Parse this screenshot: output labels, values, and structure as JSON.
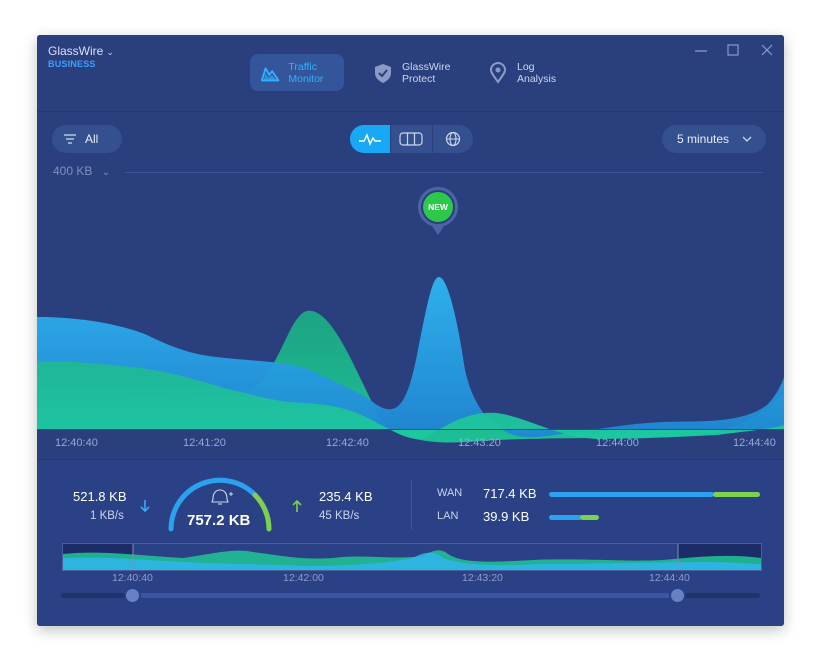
{
  "app": {
    "name": "GlassWire",
    "edition": "BUSINESS"
  },
  "nav": {
    "tabs": [
      {
        "line1": "Traffic",
        "line2": "Monitor",
        "active": true,
        "icon": "traffic-monitor-icon"
      },
      {
        "line1": "GlassWire",
        "line2": "Protect",
        "active": false,
        "icon": "shield-check-icon"
      },
      {
        "line1": "Log",
        "line2": "Analysis",
        "active": false,
        "icon": "map-pin-icon"
      }
    ]
  },
  "window_controls": [
    "minimize",
    "maximize",
    "close"
  ],
  "toolbar": {
    "filter_label": "All",
    "view_modes": [
      "graph",
      "columns",
      "globe"
    ],
    "active_view": "graph",
    "time_range": "5 minutes"
  },
  "graph": {
    "scale_label": "400 KB",
    "x_ticks": [
      "12:40:40",
      "12:41:20",
      "12:42:40",
      "12:43:20",
      "12:44:00",
      "12:44:40"
    ],
    "badge": "NEW"
  },
  "stats": {
    "download_total": "521.8 KB",
    "download_rate": "1 KB/s",
    "total": "757.2 KB",
    "upload_total": "235.4 KB",
    "upload_rate": "45 KB/s",
    "wan_label": "WAN",
    "wan_value": "717.4 KB",
    "lan_label": "LAN",
    "lan_value": "39.9 KB"
  },
  "timeline": {
    "ticks": [
      "12:40:40",
      "12:42:00",
      "12:43:20",
      "12:44:40"
    ]
  },
  "colors": {
    "background": "#2a3f7e",
    "accent_blue": "#17a9f5",
    "accent_green": "#1fbf8a",
    "badge_green": "#2cc84a"
  }
}
